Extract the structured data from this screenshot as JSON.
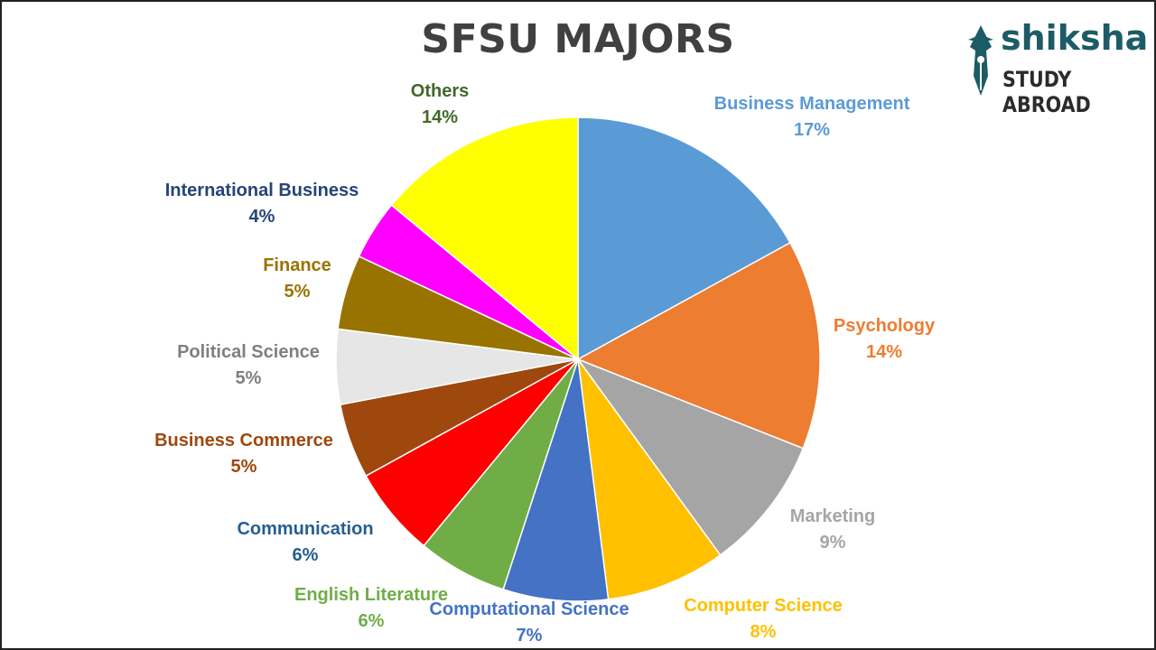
{
  "chart_data": {
    "type": "pie",
    "title": "SFSU MAJORS",
    "start_angle_deg": 0,
    "direction": "clockwise",
    "slices": [
      {
        "label": "Business Management",
        "value": 17,
        "value_text": "17%",
        "color": "#5B9BD5",
        "label_color": "#5B9BD5"
      },
      {
        "label": "Psychology",
        "value": 14,
        "value_text": "14%",
        "color": "#ED7D31",
        "label_color": "#ED7D31"
      },
      {
        "label": "Marketing",
        "value": 9,
        "value_text": "9%",
        "color": "#A5A5A5",
        "label_color": "#A5A5A5"
      },
      {
        "label": "Computer Science",
        "value": 8,
        "value_text": "8%",
        "color": "#FFC000",
        "label_color": "#FFC000"
      },
      {
        "label": "Computational Science",
        "value": 7,
        "value_text": "7%",
        "color": "#4472C4",
        "label_color": "#4472C4"
      },
      {
        "label": "English Literature",
        "value": 6,
        "value_text": "6%",
        "color": "#70AD47",
        "label_color": "#70AD47"
      },
      {
        "label": "Communication",
        "value": 6,
        "value_text": "6%",
        "color": "#FF0000",
        "label_color": "#255E91"
      },
      {
        "label": "Business Commerce",
        "value": 5,
        "value_text": "5%",
        "color": "#9E480E",
        "label_color": "#9E480E"
      },
      {
        "label": "Political Science",
        "value": 5,
        "value_text": "5%",
        "color": "#E7E6E6",
        "label_color": "#7F7F7F"
      },
      {
        "label": "Finance",
        "value": 5,
        "value_text": "5%",
        "color": "#997300",
        "label_color": "#997300"
      },
      {
        "label": "International Business",
        "value": 4,
        "value_text": "4%",
        "color": "#FF00FF",
        "label_color": "#264478"
      },
      {
        "label": "Others",
        "value": 14,
        "value_text": "14%",
        "color": "#FFFF00",
        "label_color": "#43682B"
      }
    ]
  },
  "logo": {
    "name": "shiksha",
    "subtitle": "STUDY ABROAD",
    "icon": "pen-nib-icon"
  }
}
